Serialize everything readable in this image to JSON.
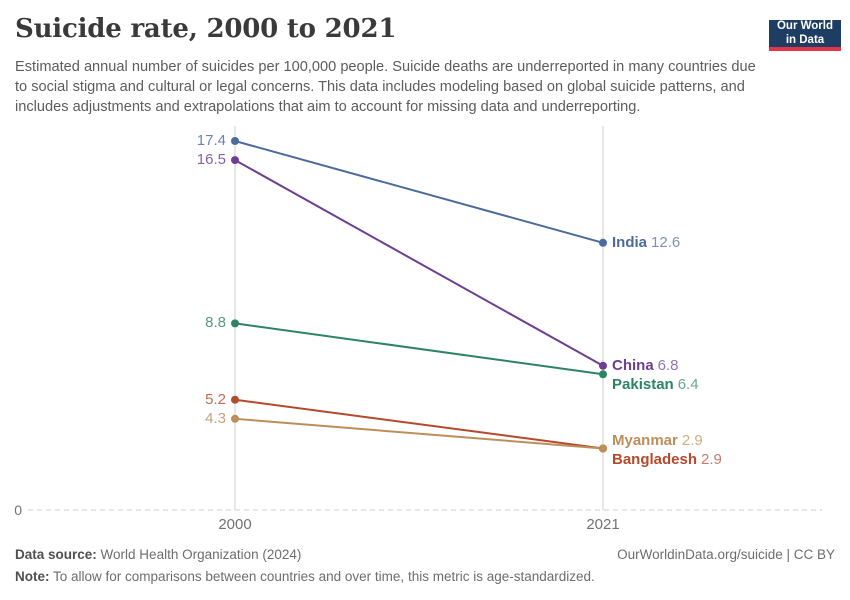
{
  "header": {
    "title": "Suicide rate, 2000 to 2021",
    "subtitle": "Estimated annual number of suicides per 100,000 people. Suicide deaths are underreported in many countries due to social stigma and cultural or legal concerns. This data includes modeling based on global suicide patterns, and includes adjustments and extrapolations that aim to account for missing data and underreporting.",
    "logo": {
      "line1": "Our World",
      "line2": "in Data",
      "bg_color": "#1D3D63",
      "accent_color": "#E0354B"
    }
  },
  "chart_data": {
    "type": "line",
    "subtype": "slope",
    "x": [
      "2000",
      "2021"
    ],
    "series": [
      {
        "name": "India",
        "color": "#4C6A9C",
        "values": [
          17.4,
          12.6
        ],
        "end_label_dy": 0
      },
      {
        "name": "China",
        "color": "#6D3E91",
        "values": [
          16.5,
          6.8
        ],
        "end_label_dy": 0
      },
      {
        "name": "Pakistan",
        "color": "#2C8465",
        "values": [
          8.8,
          6.4
        ],
        "end_label_dy": 11
      },
      {
        "name": "Bangladesh",
        "color": "#B6492B",
        "values": [
          5.2,
          2.9
        ],
        "end_label_dy": 11
      },
      {
        "name": "Myanmar",
        "color": "#BC8E5A",
        "values": [
          4.3,
          2.9
        ],
        "end_label_dy": -8
      }
    ],
    "title": "Suicide rate, 2000 to 2021",
    "xlabel": "",
    "ylabel": "",
    "ylim": [
      0,
      18.1
    ],
    "y_axis_zero_label": "0",
    "grid": "dashed zero line only",
    "legend_position": "end-of-line labels",
    "value_decimals": 1
  },
  "footer": {
    "datasource_label": "Data source:",
    "datasource_value": "World Health Organization (2024)",
    "note_label": "Note:",
    "note_value": "To allow for comparisons between countries and over time, this metric is age-standardized.",
    "credit": "OurWorldinData.org/suicide | CC BY"
  },
  "colors": {
    "axis_line": "#cfcfcf",
    "zero_line": "#dedede",
    "tick_text": "#737373",
    "title_text": "#3a3a3a",
    "subtitle_text": "#5c5c5c"
  }
}
